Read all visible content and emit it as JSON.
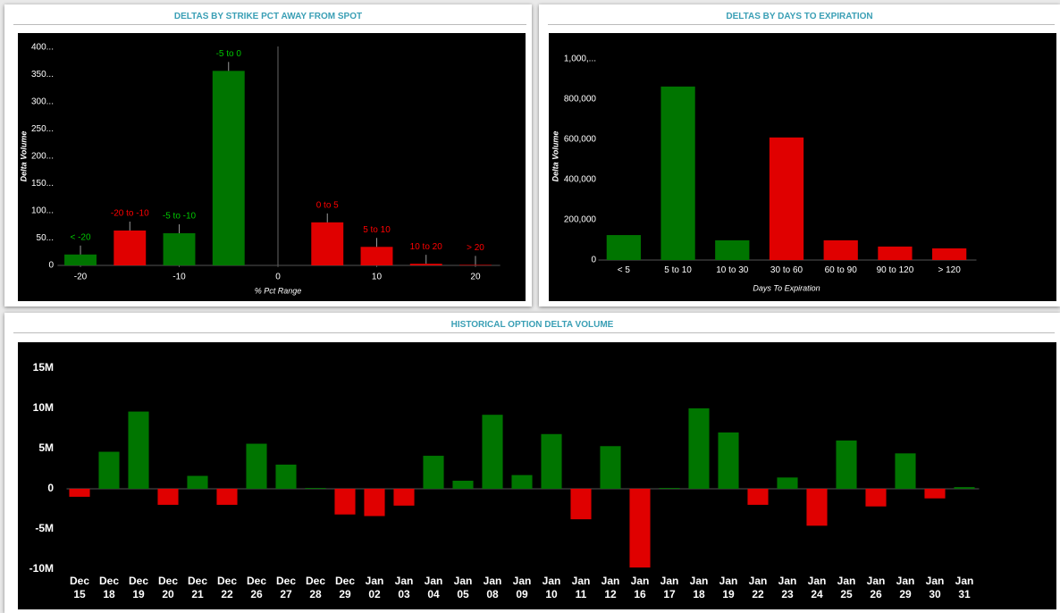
{
  "chart_data": [
    {
      "type": "bar",
      "title": "DELTAS BY STRIKE PCT AWAY FROM SPOT",
      "x_label": "% Pct Range",
      "y_label": "Delta Volume",
      "categories": [
        "< -20",
        "-20 to -10",
        "-5 to -10",
        "-5 to 0",
        "0 to 5",
        "5 to 10",
        "10 to 20",
        "> 20"
      ],
      "x": [
        -20,
        -15,
        -10,
        -5,
        5,
        10,
        15,
        20
      ],
      "values": [
        20,
        64,
        59,
        357,
        79,
        34,
        3,
        1
      ],
      "colors": [
        "#007500",
        "#e00000",
        "#007500",
        "#007500",
        "#e00000",
        "#e00000",
        "#e00000",
        "#e00000"
      ],
      "xlim": [
        -22.5,
        22.5
      ],
      "xticks": [
        -20,
        -10,
        0,
        10,
        20
      ],
      "ylim": [
        0,
        410
      ],
      "yticks": [
        0,
        {
          "value": 50,
          "label": "50..."
        },
        {
          "value": 100,
          "label": "100..."
        },
        {
          "value": 150,
          "label": "150..."
        },
        {
          "value": 200,
          "label": "200..."
        },
        {
          "value": 250,
          "label": "250..."
        },
        {
          "value": 300,
          "label": "300..."
        },
        {
          "value": 350,
          "label": "350..."
        },
        {
          "value": 400,
          "label": "400..."
        }
      ]
    },
    {
      "type": "bar",
      "title": "DELTAS BY DAYS TO EXPIRATION",
      "x_label": "Days To Expiration",
      "y_label": "Delta Volume",
      "categories": [
        "< 5",
        "5 to 10",
        "10 to 30",
        "30 to 60",
        "60 to 90",
        "90 to 120",
        "> 120"
      ],
      "values": [
        124000,
        862000,
        98000,
        609000,
        98000,
        67000,
        58000
      ],
      "colors": [
        "#007500",
        "#007500",
        "#007500",
        "#e00000",
        "#e00000",
        "#e00000",
        "#e00000"
      ],
      "ylim": [
        0,
        1070000
      ],
      "yticks": [
        0,
        {
          "value": 200000,
          "label": "200,000"
        },
        {
          "value": 400000,
          "label": "400,000"
        },
        {
          "value": 600000,
          "label": "600,000"
        },
        {
          "value": 800000,
          "label": "800,000"
        },
        {
          "value": 1000000,
          "label": "1,000,..."
        }
      ]
    },
    {
      "type": "bar",
      "title": "HISTORICAL OPTION DELTA VOLUME",
      "categories": [
        "Dec 15",
        "Dec 18",
        "Dec 19",
        "Dec 20",
        "Dec 21",
        "Dec 22",
        "Dec 26",
        "Dec 27",
        "Dec 28",
        "Dec 29",
        "Jan 02",
        "Jan 03",
        "Jan 04",
        "Jan 05",
        "Jan 08",
        "Jan 09",
        "Jan 10",
        "Jan 11",
        "Jan 12",
        "Jan 16",
        "Jan 17",
        "Jan 18",
        "Jan 19",
        "Jan 22",
        "Jan 23",
        "Jan 24",
        "Jan 25",
        "Jan 26",
        "Jan 29",
        "Jan 30",
        "Jan 31"
      ],
      "values": [
        -1000000,
        4600000,
        9600000,
        -2000000,
        1600000,
        -2000000,
        5600000,
        3000000,
        100000,
        -3200000,
        -3400000,
        -2100000,
        4100000,
        1000000,
        9200000,
        1700000,
        6800000,
        -3800000,
        5300000,
        -9800000,
        100000,
        10000000,
        7000000,
        -2000000,
        1400000,
        -4600000,
        6000000,
        -2200000,
        4400000,
        -1200000,
        200000
      ],
      "color": "#007500",
      "negative_color": "#e00000",
      "ylim": [
        -10900000,
        16300000
      ],
      "yticks": [
        {
          "value": -10000000,
          "label": "-10M"
        },
        {
          "value": -5000000,
          "label": "-5M"
        },
        0,
        {
          "value": 5000000,
          "label": "5M"
        },
        {
          "value": 10000000,
          "label": "10M"
        },
        {
          "value": 15000000,
          "label": "15M"
        }
      ]
    }
  ]
}
